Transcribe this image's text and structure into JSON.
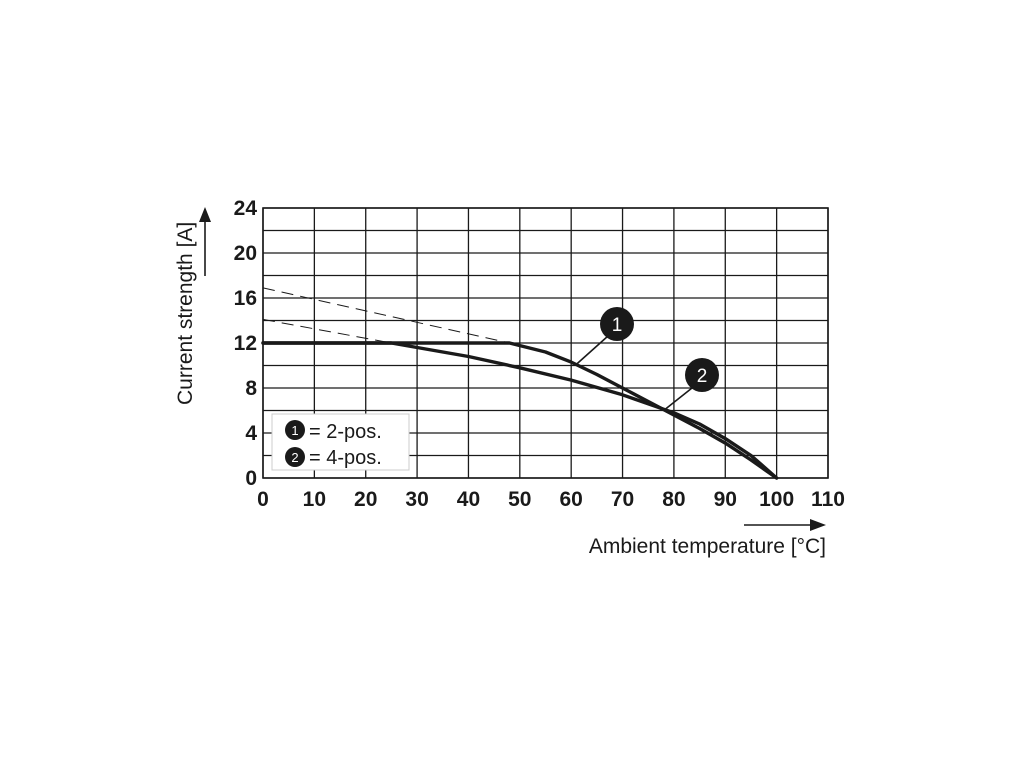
{
  "chart_data": {
    "type": "line",
    "xlabel": "Ambient temperature [°C]",
    "ylabel": "Current strength [A]",
    "xlim": [
      0,
      110
    ],
    "ylim": [
      0,
      24
    ],
    "x_ticks": [
      "0",
      "10",
      "20",
      "30",
      "40",
      "50",
      "60",
      "70",
      "80",
      "90",
      "100",
      "110"
    ],
    "y_ticks": [
      "0",
      "4",
      "8",
      "12",
      "16",
      "20",
      "24"
    ],
    "grid": true,
    "legend_position": "bottom-left",
    "legend": [
      {
        "marker": "1",
        "label": "= 2-pos."
      },
      {
        "marker": "2",
        "label": "= 4-pos."
      }
    ],
    "series": [
      {
        "marker": "1",
        "solid": [
          [
            0,
            12
          ],
          [
            48,
            12
          ],
          [
            55,
            11.2
          ],
          [
            60,
            10.3
          ],
          [
            65,
            9.2
          ],
          [
            70,
            8.0
          ],
          [
            75,
            6.8
          ],
          [
            80,
            5.6
          ],
          [
            85,
            4.4
          ],
          [
            90,
            3.1
          ],
          [
            95,
            1.6
          ],
          [
            100,
            0
          ]
        ],
        "dashed": [
          [
            0,
            16.9
          ],
          [
            48,
            12
          ]
        ]
      },
      {
        "marker": "2",
        "solid": [
          [
            0,
            12
          ],
          [
            25,
            12
          ],
          [
            30,
            11.6
          ],
          [
            40,
            10.8
          ],
          [
            50,
            9.8
          ],
          [
            60,
            8.7
          ],
          [
            70,
            7.4
          ],
          [
            80,
            5.8
          ],
          [
            85,
            4.8
          ],
          [
            90,
            3.5
          ],
          [
            95,
            2.0
          ],
          [
            100,
            0
          ]
        ],
        "dashed": [
          [
            0,
            14.1
          ],
          [
            25,
            12
          ]
        ]
      }
    ],
    "annotations": [
      {
        "marker": "1",
        "points_to": [
          61,
          10.1
        ]
      },
      {
        "marker": "2",
        "points_to": [
          78,
          6.0
        ]
      }
    ]
  }
}
